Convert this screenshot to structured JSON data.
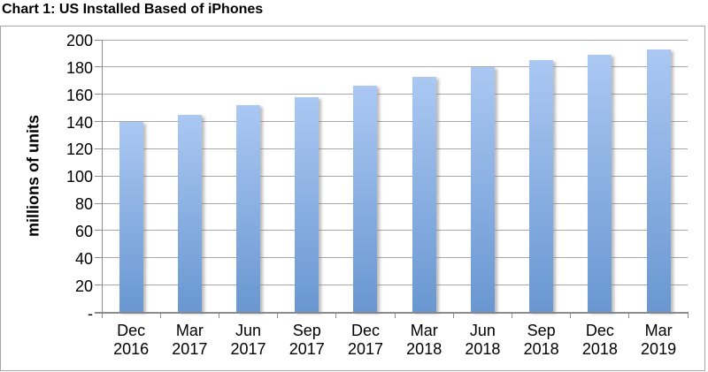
{
  "page_title": "Chart 1: US Installed Based of iPhones",
  "chart_data": {
    "type": "bar",
    "title": "Chart 1: US Installed Based of iPhones",
    "xlabel": "",
    "ylabel": "millions of units",
    "categories": [
      "Dec 2016",
      "Mar 2017",
      "Jun 2017",
      "Sep 2017",
      "Dec 2017",
      "Mar 2018",
      "Jun 2018",
      "Sep 2018",
      "Dec 2018",
      "Mar 2019"
    ],
    "values": [
      140,
      145,
      152,
      158,
      166,
      173,
      180,
      185,
      189,
      193
    ],
    "ylim": [
      0,
      200
    ],
    "ytick_step": 20,
    "yticks_bottom_to_top": [
      "-",
      "20",
      "40",
      "60",
      "80",
      "100",
      "120",
      "140",
      "160",
      "180",
      "200"
    ],
    "grid": true,
    "legend": null
  },
  "colors": {
    "bar_gradient_top": "#abc8f3",
    "bar_gradient_bottom": "#6997d1",
    "gridline": "#a6a6a6",
    "axis": "#8c8c8c",
    "frame_border": "#a6a6a6",
    "text": "#000000",
    "background": "#ffffff"
  }
}
